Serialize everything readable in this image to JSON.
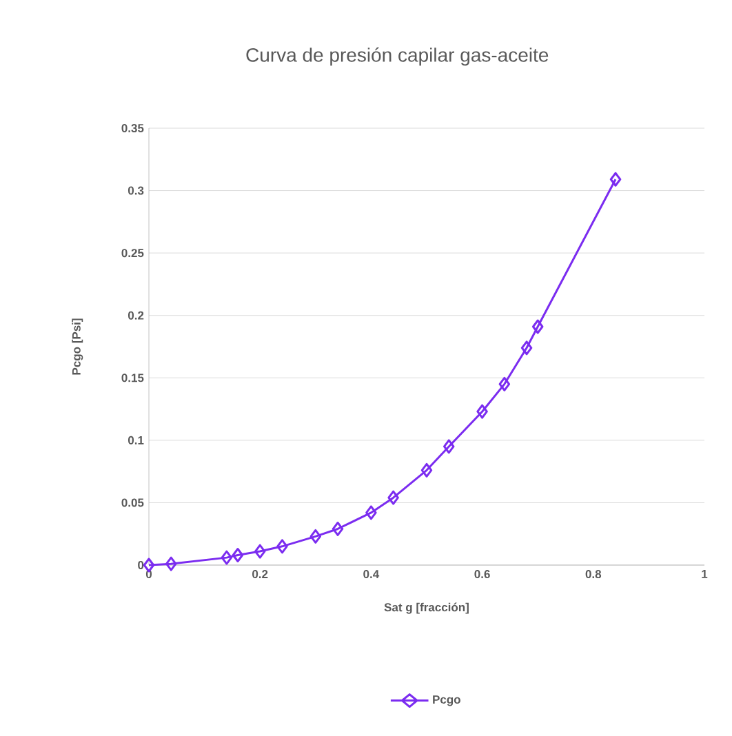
{
  "chart_data": {
    "type": "line",
    "title": "Curva de presión capilar gas-aceite",
    "xlabel": "Sat g [fracción]",
    "ylabel": "Pcgo [Psi]",
    "x": [
      0,
      0.04,
      0.14,
      0.16,
      0.2,
      0.24,
      0.3,
      0.34,
      0.4,
      0.44,
      0.5,
      0.54,
      0.6,
      0.64,
      0.68,
      0.7,
      0.84
    ],
    "series": [
      {
        "name": "Pcgo",
        "color": "#7B2CF0",
        "values": [
          0,
          0.001,
          0.006,
          0.008,
          0.011,
          0.015,
          0.023,
          0.029,
          0.042,
          0.054,
          0.076,
          0.095,
          0.123,
          0.145,
          0.174,
          0.191,
          0.309
        ]
      }
    ],
    "xlim": [
      0,
      1
    ],
    "xticks": [
      0,
      0.2,
      0.4,
      0.6,
      0.8,
      1
    ],
    "ylim": [
      0,
      0.35
    ],
    "yticks": [
      0,
      0.05,
      0.1,
      0.15,
      0.2,
      0.25,
      0.3,
      0.35
    ],
    "grid": "y",
    "legend": "bottom",
    "marker": "diamond",
    "line_style": "solid"
  }
}
